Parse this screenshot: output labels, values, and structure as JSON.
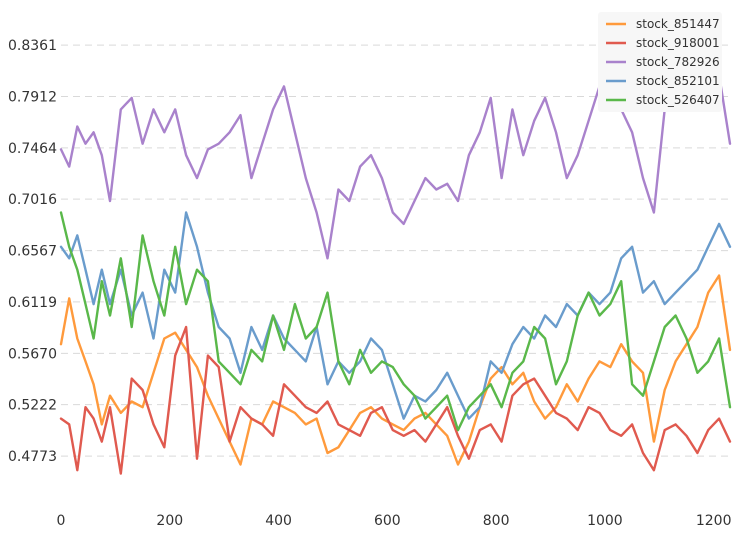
{
  "chart_data": {
    "type": "line",
    "title": "",
    "xlabel": "",
    "ylabel": "",
    "xlim": [
      0,
      1230
    ],
    "ylim": [
      0.432,
      0.858
    ],
    "x_ticks": [
      "0",
      "200",
      "400",
      "600",
      "800",
      "1000",
      "1200"
    ],
    "y_ticks": [
      "0.4773",
      "0.5222",
      "0.5670",
      "0.6119",
      "0.6567",
      "0.7016",
      "0.7464",
      "0.7912",
      "0.8361"
    ],
    "grid": "horizontal-dashed",
    "legend_position": "top-right",
    "series": [
      {
        "name": "stock_851447",
        "color": "#ff9a3c",
        "x": [
          0,
          15,
          30,
          45,
          60,
          75,
          90,
          110,
          130,
          150,
          170,
          190,
          210,
          230,
          250,
          270,
          290,
          310,
          330,
          350,
          370,
          390,
          410,
          430,
          450,
          470,
          490,
          510,
          530,
          550,
          570,
          590,
          610,
          630,
          650,
          670,
          690,
          710,
          730,
          750,
          770,
          790,
          810,
          830,
          850,
          870,
          890,
          910,
          930,
          950,
          970,
          990,
          1010,
          1030,
          1050,
          1070,
          1090,
          1110,
          1130,
          1150,
          1170,
          1190,
          1210,
          1230
        ],
        "values": [
          0.575,
          0.615,
          0.58,
          0.56,
          0.54,
          0.505,
          0.53,
          0.515,
          0.525,
          0.52,
          0.55,
          0.58,
          0.585,
          0.57,
          0.555,
          0.53,
          0.51,
          0.49,
          0.47,
          0.51,
          0.505,
          0.525,
          0.52,
          0.515,
          0.505,
          0.51,
          0.48,
          0.485,
          0.5,
          0.515,
          0.52,
          0.51,
          0.505,
          0.5,
          0.51,
          0.515,
          0.505,
          0.495,
          0.47,
          0.49,
          0.52,
          0.545,
          0.555,
          0.54,
          0.55,
          0.525,
          0.51,
          0.52,
          0.54,
          0.525,
          0.545,
          0.56,
          0.555,
          0.575,
          0.56,
          0.55,
          0.49,
          0.535,
          0.56,
          0.575,
          0.59,
          0.62,
          0.635,
          0.57
        ]
      },
      {
        "name": "stock_918001",
        "color": "#e05a4f",
        "x": [
          0,
          15,
          30,
          45,
          60,
          75,
          90,
          110,
          130,
          150,
          170,
          190,
          210,
          230,
          250,
          270,
          290,
          310,
          330,
          350,
          370,
          390,
          410,
          430,
          450,
          470,
          490,
          510,
          530,
          550,
          570,
          590,
          610,
          630,
          650,
          670,
          690,
          710,
          730,
          750,
          770,
          790,
          810,
          830,
          850,
          870,
          890,
          910,
          930,
          950,
          970,
          990,
          1010,
          1030,
          1050,
          1070,
          1090,
          1110,
          1130,
          1150,
          1170,
          1190,
          1210,
          1230
        ],
        "values": [
          0.51,
          0.505,
          0.465,
          0.52,
          0.51,
          0.49,
          0.52,
          0.462,
          0.545,
          0.535,
          0.505,
          0.485,
          0.565,
          0.59,
          0.475,
          0.565,
          0.555,
          0.49,
          0.52,
          0.51,
          0.505,
          0.495,
          0.54,
          0.53,
          0.52,
          0.515,
          0.525,
          0.505,
          0.5,
          0.495,
          0.515,
          0.52,
          0.5,
          0.495,
          0.5,
          0.49,
          0.505,
          0.52,
          0.495,
          0.475,
          0.5,
          0.505,
          0.49,
          0.53,
          0.54,
          0.545,
          0.53,
          0.515,
          0.51,
          0.5,
          0.52,
          0.515,
          0.5,
          0.495,
          0.505,
          0.48,
          0.465,
          0.5,
          0.505,
          0.495,
          0.48,
          0.5,
          0.51,
          0.49
        ]
      },
      {
        "name": "stock_782926",
        "color": "#a982cc",
        "x": [
          0,
          15,
          30,
          45,
          60,
          75,
          90,
          110,
          130,
          150,
          170,
          190,
          210,
          230,
          250,
          270,
          290,
          310,
          330,
          350,
          370,
          390,
          410,
          430,
          450,
          470,
          490,
          510,
          530,
          550,
          570,
          590,
          610,
          630,
          650,
          670,
          690,
          710,
          730,
          750,
          770,
          790,
          810,
          830,
          850,
          870,
          890,
          910,
          930,
          950,
          970,
          990,
          1010,
          1030,
          1050,
          1070,
          1090,
          1110,
          1130,
          1150,
          1170,
          1190,
          1210,
          1230
        ],
        "values": [
          0.745,
          0.73,
          0.765,
          0.75,
          0.76,
          0.74,
          0.7,
          0.78,
          0.79,
          0.75,
          0.78,
          0.76,
          0.78,
          0.74,
          0.72,
          0.745,
          0.75,
          0.76,
          0.775,
          0.72,
          0.75,
          0.78,
          0.8,
          0.76,
          0.72,
          0.69,
          0.65,
          0.71,
          0.7,
          0.73,
          0.74,
          0.72,
          0.69,
          0.68,
          0.7,
          0.72,
          0.71,
          0.715,
          0.7,
          0.74,
          0.76,
          0.79,
          0.72,
          0.78,
          0.74,
          0.77,
          0.79,
          0.76,
          0.72,
          0.74,
          0.77,
          0.8,
          0.79,
          0.78,
          0.76,
          0.72,
          0.69,
          0.78,
          0.8,
          0.78,
          0.8,
          0.79,
          0.81,
          0.75
        ]
      },
      {
        "name": "stock_852101",
        "color": "#6a9ccc",
        "x": [
          0,
          15,
          30,
          45,
          60,
          75,
          90,
          110,
          130,
          150,
          170,
          190,
          210,
          230,
          250,
          270,
          290,
          310,
          330,
          350,
          370,
          390,
          410,
          430,
          450,
          470,
          490,
          510,
          530,
          550,
          570,
          590,
          610,
          630,
          650,
          670,
          690,
          710,
          730,
          750,
          770,
          790,
          810,
          830,
          850,
          870,
          890,
          910,
          930,
          950,
          970,
          990,
          1010,
          1030,
          1050,
          1070,
          1090,
          1110,
          1130,
          1150,
          1170,
          1190,
          1210,
          1230
        ],
        "values": [
          0.66,
          0.65,
          0.67,
          0.64,
          0.61,
          0.64,
          0.61,
          0.64,
          0.6,
          0.62,
          0.58,
          0.64,
          0.62,
          0.69,
          0.66,
          0.62,
          0.59,
          0.58,
          0.55,
          0.59,
          0.57,
          0.6,
          0.58,
          0.57,
          0.56,
          0.59,
          0.54,
          0.56,
          0.55,
          0.56,
          0.58,
          0.57,
          0.54,
          0.51,
          0.53,
          0.525,
          0.535,
          0.55,
          0.53,
          0.51,
          0.52,
          0.56,
          0.55,
          0.575,
          0.59,
          0.58,
          0.6,
          0.59,
          0.61,
          0.6,
          0.62,
          0.61,
          0.62,
          0.65,
          0.66,
          0.62,
          0.63,
          0.61,
          0.62,
          0.63,
          0.64,
          0.66,
          0.68,
          0.66
        ]
      },
      {
        "name": "stock_526407",
        "color": "#5ab84a",
        "x": [
          0,
          15,
          30,
          45,
          60,
          75,
          90,
          110,
          130,
          150,
          170,
          190,
          210,
          230,
          250,
          270,
          290,
          310,
          330,
          350,
          370,
          390,
          410,
          430,
          450,
          470,
          490,
          510,
          530,
          550,
          570,
          590,
          610,
          630,
          650,
          670,
          690,
          710,
          730,
          750,
          770,
          790,
          810,
          830,
          850,
          870,
          890,
          910,
          930,
          950,
          970,
          990,
          1010,
          1030,
          1050,
          1070,
          1090,
          1110,
          1130,
          1150,
          1170,
          1190,
          1210,
          1230
        ],
        "values": [
          0.69,
          0.66,
          0.64,
          0.61,
          0.58,
          0.63,
          0.6,
          0.65,
          0.59,
          0.67,
          0.63,
          0.6,
          0.66,
          0.61,
          0.64,
          0.63,
          0.56,
          0.55,
          0.54,
          0.57,
          0.56,
          0.6,
          0.57,
          0.61,
          0.58,
          0.59,
          0.62,
          0.56,
          0.54,
          0.57,
          0.55,
          0.56,
          0.555,
          0.54,
          0.53,
          0.51,
          0.52,
          0.53,
          0.5,
          0.52,
          0.53,
          0.54,
          0.52,
          0.55,
          0.56,
          0.59,
          0.58,
          0.54,
          0.56,
          0.6,
          0.62,
          0.6,
          0.61,
          0.63,
          0.54,
          0.53,
          0.56,
          0.59,
          0.6,
          0.58,
          0.55,
          0.56,
          0.58,
          0.52
        ]
      }
    ]
  }
}
